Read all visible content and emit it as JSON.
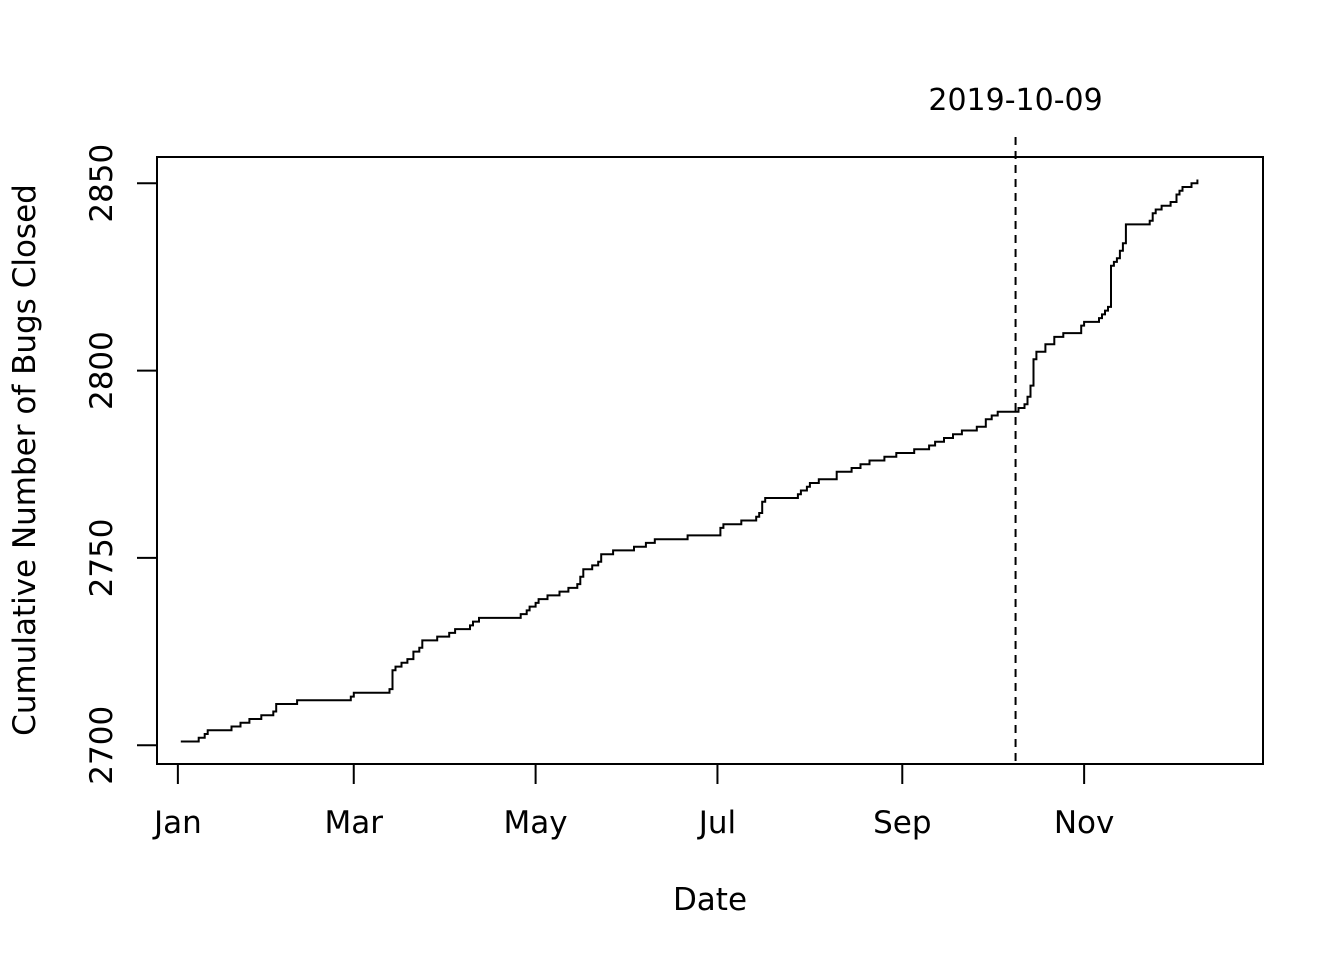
{
  "chart_data": {
    "type": "line",
    "step": true,
    "title": "",
    "xlabel": "Date",
    "ylabel": "Cumulative Number of Bugs Closed",
    "xlim": [
      "2018-12-25",
      "2019-12-31"
    ],
    "ylim": [
      2695,
      2857
    ],
    "grid": false,
    "legend": "none",
    "x_ticks": [
      {
        "date": "2019-01-01",
        "label": "Jan"
      },
      {
        "date": "2019-03-01",
        "label": "Mar"
      },
      {
        "date": "2019-05-01",
        "label": "May"
      },
      {
        "date": "2019-07-01",
        "label": "Jul"
      },
      {
        "date": "2019-09-01",
        "label": "Sep"
      },
      {
        "date": "2019-11-01",
        "label": "Nov"
      }
    ],
    "y_ticks": [
      2700,
      2750,
      2800,
      2850
    ],
    "annotation": {
      "date": "2019-10-09",
      "label": "2019-10-09",
      "style": "dashed"
    },
    "line_color": "#000000",
    "series": [
      {
        "x": [
          "2019-01-02",
          "2019-01-08",
          "2019-01-10",
          "2019-01-11",
          "2019-01-12",
          "2019-01-19",
          "2019-01-22",
          "2019-01-25",
          "2019-01-29",
          "2019-02-02",
          "2019-02-03",
          "2019-02-05",
          "2019-02-10",
          "2019-02-18",
          "2019-02-28",
          "2019-03-01",
          "2019-03-13",
          "2019-03-14",
          "2019-03-15",
          "2019-03-17",
          "2019-03-19",
          "2019-03-21",
          "2019-03-23",
          "2019-03-24",
          "2019-03-26",
          "2019-03-29",
          "2019-04-02",
          "2019-04-04",
          "2019-04-09",
          "2019-04-10",
          "2019-04-12",
          "2019-04-26",
          "2019-04-28",
          "2019-04-29",
          "2019-05-01",
          "2019-05-02",
          "2019-05-05",
          "2019-05-09",
          "2019-05-12",
          "2019-05-15",
          "2019-05-16",
          "2019-05-17",
          "2019-05-20",
          "2019-05-22",
          "2019-05-23",
          "2019-05-27",
          "2019-06-03",
          "2019-06-07",
          "2019-06-10",
          "2019-06-21",
          "2019-06-22",
          "2019-07-02",
          "2019-07-03",
          "2019-07-06",
          "2019-07-09",
          "2019-07-13",
          "2019-07-14",
          "2019-07-15",
          "2019-07-16",
          "2019-07-17",
          "2019-07-28",
          "2019-07-29",
          "2019-07-31",
          "2019-08-01",
          "2019-08-04",
          "2019-08-10",
          "2019-08-15",
          "2019-08-18",
          "2019-08-21",
          "2019-08-26",
          "2019-08-30",
          "2019-09-05",
          "2019-09-10",
          "2019-09-12",
          "2019-09-15",
          "2019-09-18",
          "2019-09-21",
          "2019-09-26",
          "2019-09-29",
          "2019-10-01",
          "2019-10-03",
          "2019-10-04",
          "2019-10-10",
          "2019-10-12",
          "2019-10-13",
          "2019-10-14",
          "2019-10-15",
          "2019-10-16",
          "2019-10-19",
          "2019-10-22",
          "2019-10-25",
          "2019-10-31",
          "2019-11-01",
          "2019-11-06",
          "2019-11-07",
          "2019-11-08",
          "2019-11-09",
          "2019-11-10",
          "2019-11-11",
          "2019-11-12",
          "2019-11-13",
          "2019-11-14",
          "2019-11-15",
          "2019-11-23",
          "2019-11-24",
          "2019-11-25",
          "2019-11-27",
          "2019-11-30",
          "2019-12-02",
          "2019-12-03",
          "2019-12-04",
          "2019-12-07",
          "2019-12-09"
        ],
        "values": [
          2701,
          2702,
          2703,
          2704,
          2704,
          2705,
          2706,
          2707,
          2708,
          2709,
          2711,
          2711,
          2712,
          2712,
          2713,
          2714,
          2715,
          2720,
          2721,
          2722,
          2723,
          2725,
          2726,
          2728,
          2728,
          2729,
          2730,
          2731,
          2732,
          2733,
          2734,
          2735,
          2736,
          2737,
          2738,
          2739,
          2740,
          2741,
          2742,
          2743,
          2745,
          2747,
          2748,
          2749,
          2751,
          2752,
          2753,
          2754,
          2755,
          2756,
          2756,
          2758,
          2759,
          2759,
          2760,
          2760,
          2761,
          2762,
          2765,
          2766,
          2767,
          2768,
          2769,
          2770,
          2771,
          2773,
          2774,
          2775,
          2776,
          2777,
          2778,
          2779,
          2780,
          2781,
          2782,
          2783,
          2784,
          2785,
          2787,
          2788,
          2789,
          2789,
          2790,
          2791,
          2793,
          2796,
          2803,
          2805,
          2807,
          2809,
          2810,
          2812,
          2813,
          2814,
          2815,
          2816,
          2817,
          2828,
          2829,
          2830,
          2832,
          2834,
          2839,
          2840,
          2842,
          2843,
          2844,
          2845,
          2847,
          2848,
          2849,
          2850,
          2851
        ],
        "name": ""
      }
    ]
  }
}
